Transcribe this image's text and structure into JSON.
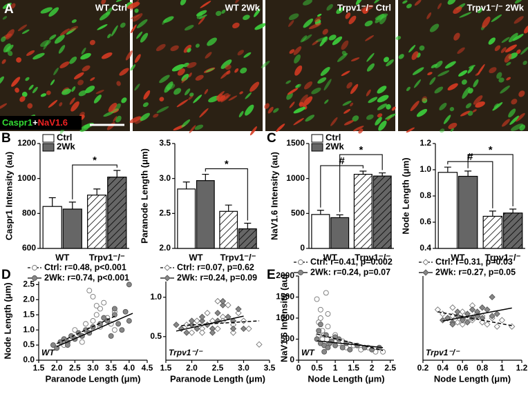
{
  "panels": [
    "A",
    "B",
    "C",
    "D",
    "E"
  ],
  "panel_a": {
    "images": [
      {
        "label": "WT Ctrl"
      },
      {
        "label": "WT 2Wk"
      },
      {
        "label": "Trpv1⁻/⁻ Ctrl"
      },
      {
        "label": "Trpv1⁻/⁻ 2Wk"
      }
    ],
    "stain_label": [
      "Caspr1",
      "+",
      "NaV1.6"
    ]
  },
  "chart_data": [
    {
      "type": "bar",
      "y_label": "Caspr1 Intensity (au)",
      "categories": [
        "WT",
        "Trpv1⁻/⁻"
      ],
      "series": [
        {
          "name": "Ctrl",
          "color": "#ffffff",
          "values": [
            840,
            905
          ],
          "errors": [
            50,
            35
          ]
        },
        {
          "name": "2Wk",
          "color": "#666666",
          "values": [
            825,
            1008
          ],
          "errors": [
            40,
            38
          ]
        }
      ],
      "hatched_categories": [
        1
      ],
      "ylim": [
        600,
        1200
      ],
      "yticks": [
        600,
        800,
        1000,
        1200
      ],
      "legend": "upper left",
      "annotations": [
        {
          "text": "*",
          "bars": [
            [
              0,
              1
            ],
            [
              1,
              1
            ]
          ]
        }
      ]
    },
    {
      "type": "bar",
      "y_label": "Paranode Length (μm)",
      "categories": [
        "WT",
        "Trpv1⁻/⁻"
      ],
      "series": [
        {
          "name": "Ctrl",
          "color": "#ffffff",
          "values": [
            2.85,
            2.53
          ],
          "errors": [
            0.1,
            0.09
          ]
        },
        {
          "name": "2Wk",
          "color": "#666666",
          "values": [
            2.97,
            2.28
          ],
          "errors": [
            0.09,
            0.08
          ]
        }
      ],
      "hatched_categories": [
        1
      ],
      "ylim": [
        2.0,
        3.5
      ],
      "yticks": [
        {
          "value": 2,
          "label": "2.0"
        },
        2.5,
        {
          "value": 3,
          "label": "3.0"
        },
        3.5
      ],
      "annotations": [
        {
          "text": "*",
          "bars": [
            [
              0,
              1
            ],
            [
              1,
              1
            ]
          ]
        }
      ]
    },
    {
      "type": "bar",
      "y_label": "NaV1.6 Intensity (au)",
      "categories": [
        "WT",
        "Trpv1⁻/⁻"
      ],
      "series": [
        {
          "name": "Ctrl",
          "color": "#ffffff",
          "values": [
            485,
            1060
          ],
          "errors": [
            60,
            45
          ]
        },
        {
          "name": "2Wk",
          "color": "#666666",
          "values": [
            440,
            1035
          ],
          "errors": [
            40,
            45
          ]
        }
      ],
      "hatched_categories": [
        1
      ],
      "ylim": [
        0,
        1500
      ],
      "yticks": [
        0,
        500,
        1000,
        1500
      ],
      "legend": "upper left",
      "annotations": [
        {
          "text": "#",
          "bars": [
            [
              0,
              0
            ],
            [
              1,
              0
            ]
          ]
        },
        {
          "text": "*",
          "bars": [
            [
              0,
              1
            ],
            [
              1,
              1
            ]
          ]
        }
      ]
    },
    {
      "type": "bar",
      "y_label": "Node Length (μm)",
      "categories": [
        "WT",
        "Trpv1⁻/⁻"
      ],
      "series": [
        {
          "name": "Ctrl",
          "color": "#ffffff",
          "values": [
            0.98,
            0.645
          ],
          "errors": [
            0.04,
            0.04
          ]
        },
        {
          "name": "2Wk",
          "color": "#666666",
          "values": [
            0.95,
            0.67
          ],
          "errors": [
            0.04,
            0.03
          ]
        }
      ],
      "hatched_categories": [
        1
      ],
      "ylim": [
        0.4,
        1.2
      ],
      "yticks": [
        0.4,
        0.6,
        0.8,
        {
          "value": 1,
          "label": "1.0"
        },
        1.2
      ],
      "annotations": [
        {
          "text": "#",
          "bars": [
            [
              0,
              0
            ],
            [
              1,
              0
            ]
          ]
        },
        {
          "text": "*",
          "bars": [
            [
              0,
              1
            ],
            [
              1,
              1
            ]
          ]
        }
      ]
    },
    {
      "type": "scatter",
      "x_label": "Paranode Length (μm)",
      "y_label": "Node Length (μm)",
      "note": "WT",
      "xlim": [
        1.5,
        4.5
      ],
      "xticks": [
        1.5,
        {
          "value": 2,
          "label": "2.0"
        },
        2.5,
        {
          "value": 3,
          "label": "3.0"
        },
        3.5,
        {
          "value": 4,
          "label": "4.0"
        },
        4.5
      ],
      "ylim": [
        0,
        2.6
      ],
      "yticks": [
        {
          "value": 0,
          "label": "0.0"
        },
        0.5,
        {
          "value": 1,
          "label": "1.0"
        },
        1.5,
        {
          "value": 2,
          "label": "2.0"
        },
        2.5
      ],
      "series": [
        {
          "name": "Ctrl: r=0.48, p<0.001",
          "color": "#888888",
          "marker": "circle",
          "filled": false,
          "line_style": "dashed",
          "x": [
            2.1,
            2.2,
            2.3,
            2.4,
            2.5,
            2.5,
            2.6,
            2.7,
            2.8,
            2.9,
            2.9,
            3.0,
            3.0,
            3.1,
            3.2,
            3.2,
            3.3,
            3.4,
            3.5,
            3.6,
            2.2,
            2.7,
            3.1,
            3.6
          ],
          "values": [
            0.6,
            0.7,
            0.6,
            0.8,
            0.7,
            1.0,
            0.9,
            0.8,
            1.2,
            2.3,
            1.0,
            2.1,
            1.3,
            1.5,
            1.7,
            1.1,
            1.9,
            1.4,
            1.2,
            1.0,
            0.5,
            0.6,
            1.8,
            1.6
          ],
          "trend": {
            "x": [
              2.0,
              3.6
            ],
            "y": [
              0.55,
              1.45
            ]
          }
        },
        {
          "name": "2Wk: r=0.74, p<0.001",
          "color": "#888888",
          "marker": "circle",
          "filled": true,
          "line_style": "solid",
          "x": [
            1.9,
            2.0,
            2.1,
            2.2,
            2.3,
            2.4,
            2.5,
            2.6,
            2.7,
            2.8,
            3.0,
            3.2,
            3.4,
            3.5,
            3.6,
            3.7,
            3.8,
            3.9,
            4.0,
            2.3,
            2.9,
            3.3,
            3.6,
            4.0
          ],
          "values": [
            0.5,
            0.4,
            0.6,
            0.7,
            0.6,
            0.8,
            0.7,
            0.9,
            0.8,
            1.0,
            1.1,
            1.2,
            1.3,
            0.8,
            1.5,
            1.2,
            1.0,
            1.6,
            2.5,
            0.5,
            0.9,
            1.4,
            1.7,
            1.3
          ],
          "trend": {
            "x": [
              2.0,
              4.1
            ],
            "y": [
              0.45,
              1.55
            ]
          }
        }
      ]
    },
    {
      "type": "scatter",
      "x_label": "Paranode Length (μm)",
      "note": "Trpv1⁻/⁻",
      "xlim": [
        1.5,
        3.5
      ],
      "xticks": [
        1.5,
        {
          "value": 2,
          "label": "2.0"
        },
        2.5,
        {
          "value": 3,
          "label": "3.0"
        },
        3.5
      ],
      "ylim": [
        0.2,
        1.2
      ],
      "yticks": [
        0.5,
        {
          "value": 1,
          "label": "1.0"
        }
      ],
      "series": [
        {
          "name": "Ctrl: r=0.07, p=0.62",
          "color": "#888888",
          "marker": "diamond",
          "filled": false,
          "line_style": "dashed",
          "x": [
            1.8,
            1.9,
            2.0,
            2.1,
            2.2,
            2.3,
            2.4,
            2.5,
            2.6,
            2.7,
            2.8,
            2.9,
            3.0,
            3.1,
            3.3,
            2.2,
            2.5,
            2.8,
            2.4,
            2.6
          ],
          "values": [
            0.6,
            0.65,
            0.55,
            0.7,
            0.6,
            0.8,
            0.7,
            0.6,
            0.75,
            0.9,
            0.65,
            0.8,
            0.7,
            0.6,
            0.4,
            0.55,
            0.95,
            0.55,
            0.6,
            0.7
          ],
          "trend": {
            "x": [
              1.8,
              3.3
            ],
            "y": [
              0.64,
              0.7
            ]
          }
        },
        {
          "name": "2Wk: r=0.24, p=0.09",
          "color": "#888888",
          "marker": "diamond",
          "filled": true,
          "line_style": "solid",
          "x": [
            1.7,
            1.8,
            1.9,
            2.0,
            2.1,
            2.2,
            2.3,
            2.4,
            2.5,
            2.6,
            2.7,
            2.8,
            2.9,
            3.0,
            2.0,
            2.4,
            2.6,
            2.2,
            2.8,
            2.5
          ],
          "values": [
            0.65,
            0.6,
            0.55,
            0.65,
            0.6,
            0.7,
            0.65,
            0.6,
            0.8,
            0.9,
            0.75,
            0.7,
            0.85,
            0.6,
            0.7,
            0.55,
            0.95,
            0.75,
            0.6,
            0.7
          ],
          "trend": {
            "x": [
              1.7,
              3.0
            ],
            "y": [
              0.57,
              0.76
            ]
          }
        }
      ]
    },
    {
      "type": "scatter",
      "x_label": "Node Length (μm)",
      "y_label": "NaV1.6 Intensity (au)",
      "note": "WT",
      "xlim": [
        0,
        2.6
      ],
      "xticks": [
        0,
        0.5,
        1,
        1.5,
        2,
        2.5
      ],
      "ylim": [
        0,
        2000
      ],
      "yticks": [
        0,
        500,
        1000,
        1500,
        2000
      ],
      "series": [
        {
          "name": "Ctrl: r=0.41, p=0.002",
          "color": "#888888",
          "marker": "circle",
          "filled": false,
          "line_style": "dashed",
          "x": [
            0.5,
            0.55,
            0.6,
            0.65,
            0.7,
            0.75,
            0.8,
            0.9,
            1.0,
            1.1,
            1.2,
            1.3,
            1.5,
            1.7,
            1.9,
            2.1,
            2.3,
            0.6,
            0.7,
            0.8,
            0.55,
            0.65
          ],
          "values": [
            1450,
            900,
            1200,
            700,
            600,
            1600,
            800,
            500,
            600,
            400,
            450,
            300,
            350,
            250,
            300,
            200,
            200,
            1000,
            400,
            1100,
            600,
            500
          ],
          "trend": {
            "x": [
              0.5,
              2.3
            ],
            "y": [
              620,
              230
            ]
          }
        },
        {
          "name": "2Wk: r=0.24, p=0.07",
          "color": "#888888",
          "marker": "circle",
          "filled": true,
          "line_style": "solid",
          "x": [
            0.5,
            0.55,
            0.6,
            0.7,
            0.75,
            0.8,
            0.9,
            1.0,
            1.1,
            1.2,
            1.3,
            1.4,
            1.6,
            1.8,
            2.0,
            2.2,
            0.6,
            0.7,
            0.85,
            1.0
          ],
          "values": [
            500,
            700,
            400,
            350,
            600,
            300,
            450,
            350,
            500,
            300,
            400,
            250,
            350,
            300,
            250,
            300,
            850,
            200,
            400,
            550
          ],
          "trend": {
            "x": [
              0.5,
              2.3
            ],
            "y": [
              460,
              300
            ]
          }
        }
      ]
    },
    {
      "type": "scatter",
      "x_label": "Node Length (μm)",
      "note": "Trpv1⁻/⁻",
      "xlim": [
        0.2,
        1.2
      ],
      "xticks": [
        0.2,
        0.4,
        0.6,
        0.8,
        1,
        1.2
      ],
      "ylim": [
        0,
        2000
      ],
      "series": [
        {
          "name": "Ctrl: r=0.31, p=0.03",
          "color": "#888888",
          "marker": "diamond",
          "filled": false,
          "line_style": "dashed",
          "x": [
            0.35,
            0.4,
            0.45,
            0.5,
            0.55,
            0.6,
            0.65,
            0.7,
            0.75,
            0.8,
            0.85,
            0.9,
            0.95,
            1.0,
            1.1,
            0.5,
            0.6,
            0.7,
            0.8,
            0.65
          ],
          "values": [
            1200,
            1100,
            1000,
            1050,
            900,
            1150,
            1000,
            950,
            1100,
            900,
            850,
            1000,
            800,
            950,
            800,
            1250,
            850,
            1300,
            1050,
            1000
          ],
          "trend": {
            "x": [
              0.35,
              1.1
            ],
            "y": [
              1150,
              820
            ]
          }
        },
        {
          "name": "2Wk: r=0.27, p=0.05",
          "color": "#888888",
          "marker": "diamond",
          "filled": true,
          "line_style": "solid",
          "x": [
            0.4,
            0.45,
            0.5,
            0.55,
            0.6,
            0.65,
            0.7,
            0.75,
            0.8,
            0.85,
            0.9,
            0.95,
            0.5,
            0.6,
            0.7,
            0.8,
            0.9,
            0.55,
            0.65,
            0.75
          ],
          "values": [
            950,
            1000,
            900,
            1050,
            1000,
            1100,
            1000,
            1150,
            1000,
            1200,
            1500,
            1100,
            850,
            950,
            1200,
            1250,
            1050,
            1150,
            900,
            1050
          ],
          "trend": {
            "x": [
              0.4,
              1.1
            ],
            "y": [
              930,
              1240
            ]
          }
        }
      ]
    }
  ]
}
